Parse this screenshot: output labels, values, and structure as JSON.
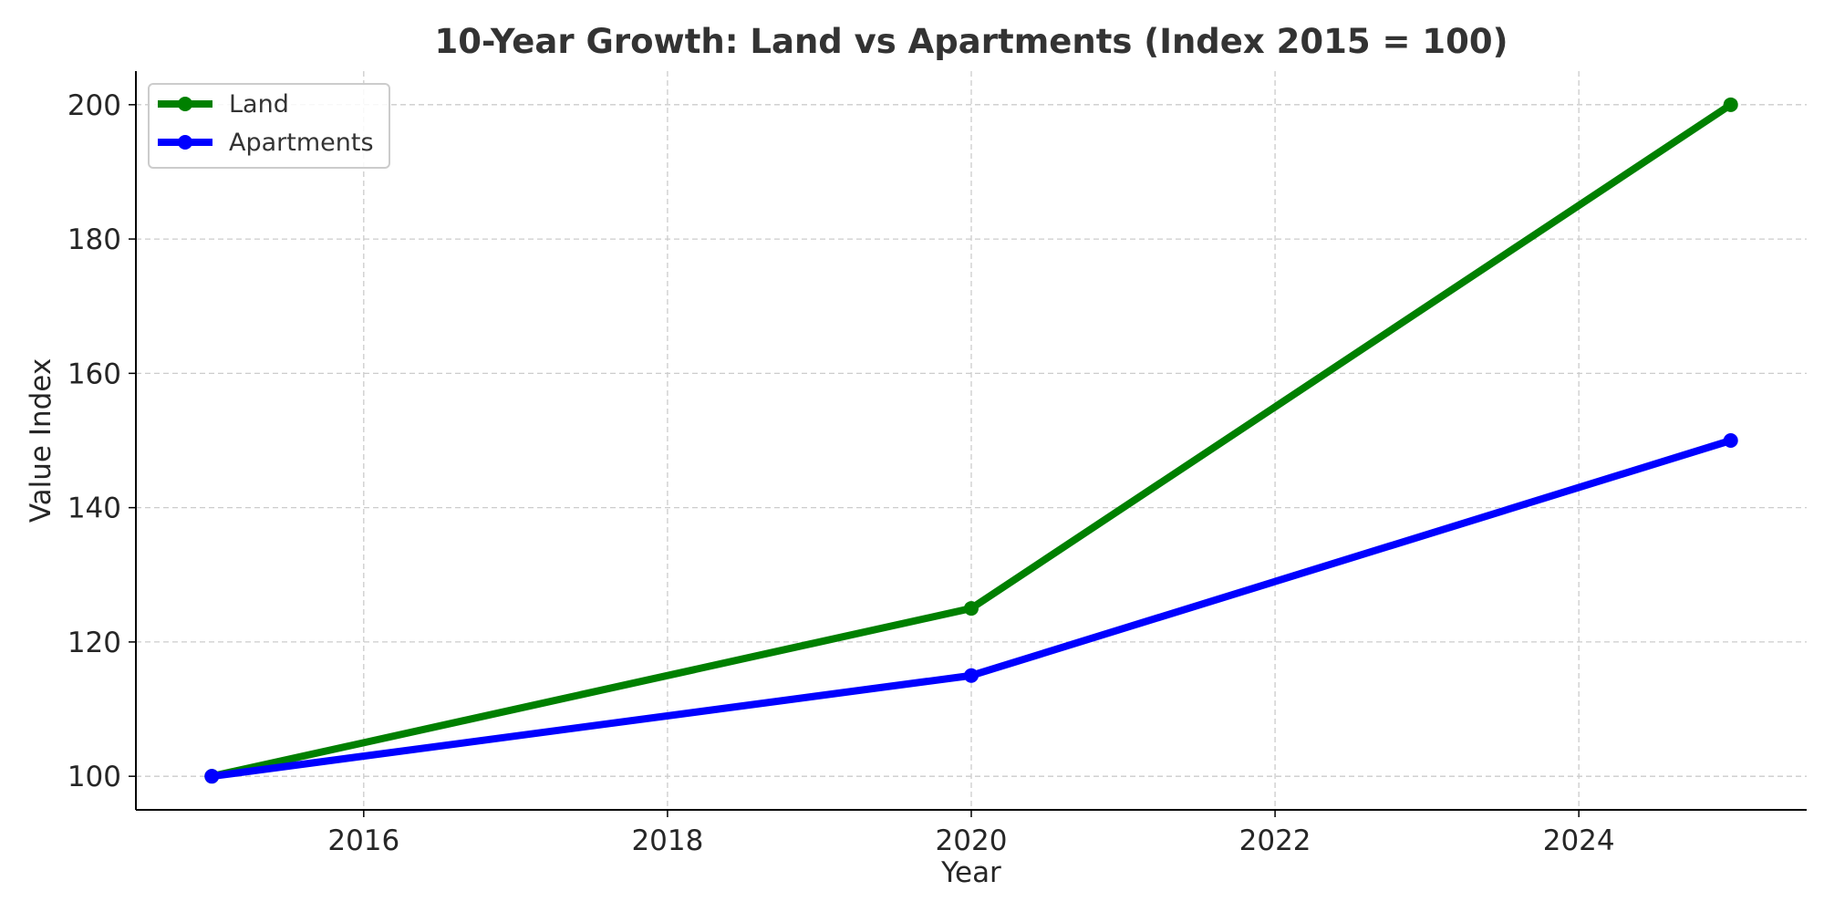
{
  "chart_data": {
    "type": "line",
    "title": "10-Year Growth: Land vs Apartments (Index 2015 = 100)",
    "xlabel": "Year",
    "ylabel": "Value Index",
    "xlim": [
      2014.5,
      2025.5
    ],
    "ylim": [
      95,
      205
    ],
    "x_ticks": [
      2016,
      2018,
      2020,
      2022,
      2024
    ],
    "y_ticks": [
      100,
      120,
      140,
      160,
      180,
      200
    ],
    "grid": true,
    "legend_position": "top-left",
    "series": [
      {
        "name": "Land",
        "color": "#008000",
        "x": [
          2015,
          2020,
          2025
        ],
        "y": [
          100,
          125,
          200
        ]
      },
      {
        "name": "Apartments",
        "color": "#0000ff",
        "x": [
          2015,
          2020,
          2025
        ],
        "y": [
          100,
          115,
          150
        ]
      }
    ]
  }
}
